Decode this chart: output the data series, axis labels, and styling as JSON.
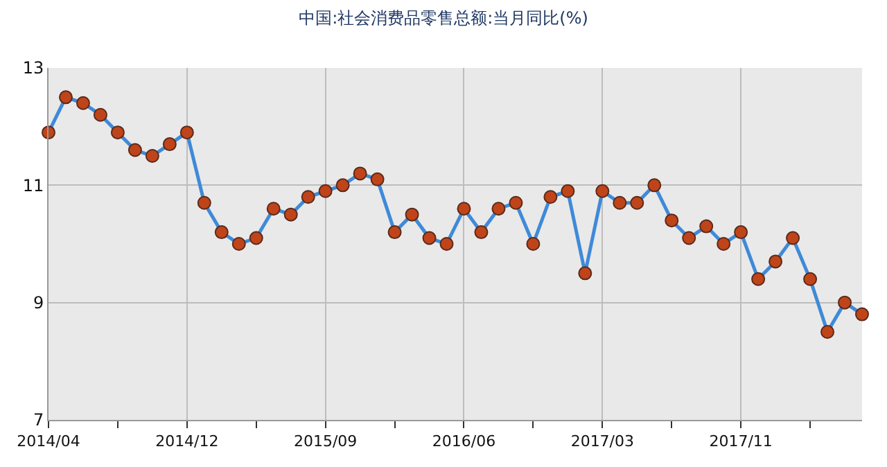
{
  "chart_data": {
    "type": "line",
    "title": "中国:社会消费品零售总额:当月同比(%)",
    "categories": [
      "2014/04",
      null,
      null,
      null,
      null,
      null,
      null,
      null,
      "2014/12",
      null,
      null,
      null,
      null,
      null,
      null,
      null,
      "2015/09",
      null,
      null,
      null,
      null,
      null,
      null,
      null,
      "2016/06",
      null,
      null,
      null,
      null,
      null,
      null,
      null,
      "2017/03",
      null,
      null,
      null,
      null,
      null,
      null,
      null,
      "2017/11",
      null,
      null,
      null,
      null,
      null,
      null,
      null
    ],
    "series": [
      {
        "color": "#3f8ad8",
        "values": [
          11.9,
          12.5,
          12.4,
          12.2,
          11.9,
          11.6,
          11.5,
          11.7,
          11.9,
          10.7,
          10.2,
          10.0,
          10.1,
          10.6,
          10.5,
          10.8,
          10.9,
          11.0,
          11.2,
          11.1,
          10.2,
          10.5,
          10.1,
          10.0,
          10.6,
          10.2,
          10.6,
          10.7,
          10.0,
          10.8,
          10.9,
          9.5,
          10.9,
          10.7,
          10.7,
          11.0,
          10.4,
          10.1,
          10.3,
          10.0,
          10.2,
          9.4,
          9.7,
          10.1,
          9.4,
          8.5,
          9.0,
          8.8
        ]
      }
    ],
    "ylim": [
      7,
      13
    ],
    "yticks": [
      7,
      9,
      11,
      13
    ],
    "grid": true,
    "legend": false,
    "marker": "circle",
    "line_style": "solid"
  }
}
